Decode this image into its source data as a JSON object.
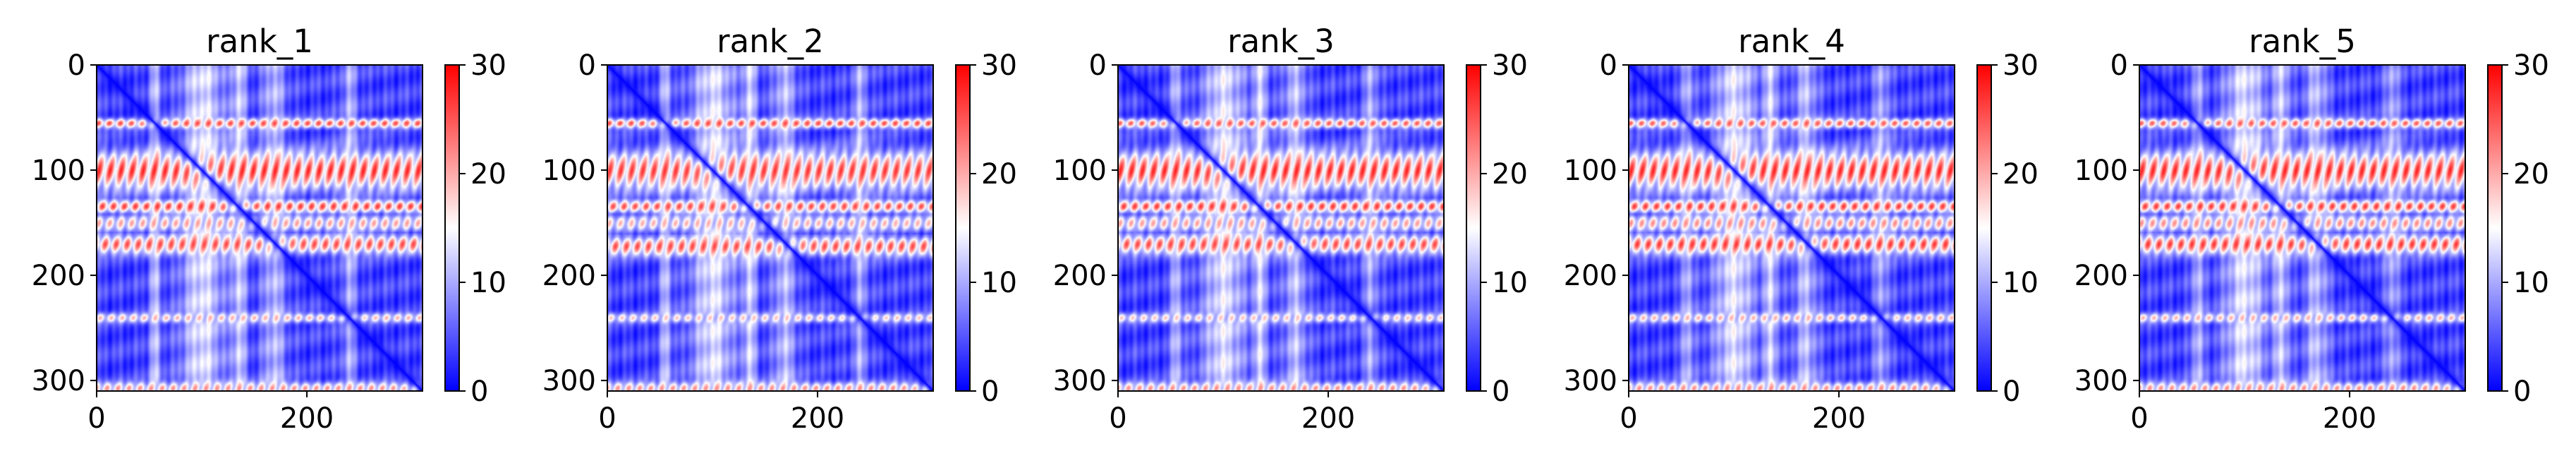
{
  "figure": {
    "panels": [
      {
        "title": "rank_1"
      },
      {
        "title": "rank_2"
      },
      {
        "title": "rank_3"
      },
      {
        "title": "rank_4"
      },
      {
        "title": "rank_5"
      }
    ]
  },
  "chart_data": {
    "type": "heatmap",
    "colormap": "bwr",
    "colormap_colors": [
      "#0000ff",
      "#ffffff",
      "#ff0000"
    ],
    "value_range": [
      0,
      30
    ],
    "matrix_size": 310,
    "xlim": [
      0,
      310
    ],
    "ylim": [
      310,
      0
    ],
    "x_tick_labels": [
      "0",
      "200"
    ],
    "x_tick_values": [
      0,
      200
    ],
    "y_tick_labels": [
      "0",
      "100",
      "200",
      "300"
    ],
    "y_tick_values": [
      0,
      100,
      200,
      300
    ],
    "colorbar_tick_labels": [
      "0",
      "10",
      "20",
      "30"
    ],
    "colorbar_tick_values": [
      0,
      10,
      20,
      30
    ],
    "grid": false,
    "panels": [
      {
        "title": "rank_1",
        "row_bands": [
          {
            "center": 55,
            "width": 3,
            "value": 26
          },
          {
            "center": 100,
            "width": 12,
            "value": 28
          },
          {
            "center": 134,
            "width": 4,
            "value": 27
          },
          {
            "center": 150,
            "width": 5,
            "value": 21
          },
          {
            "center": 170,
            "width": 6,
            "value": 26
          },
          {
            "center": 240,
            "width": 3,
            "value": 20
          },
          {
            "center": 307,
            "width": 4,
            "value": 22
          }
        ],
        "column_bands": [
          {
            "center": 55,
            "width": 4,
            "value": 11
          },
          {
            "center": 100,
            "width": 14,
            "value": 13
          },
          {
            "center": 135,
            "width": 5,
            "value": 12
          },
          {
            "center": 168,
            "width": 8,
            "value": 11
          },
          {
            "center": 240,
            "width": 5,
            "value": 10
          }
        ]
      },
      {
        "title": "rank_2",
        "row_bands": [
          {
            "center": 55,
            "width": 3,
            "value": 26
          },
          {
            "center": 100,
            "width": 12,
            "value": 27
          },
          {
            "center": 134,
            "width": 4,
            "value": 26
          },
          {
            "center": 150,
            "width": 5,
            "value": 20
          },
          {
            "center": 172,
            "width": 6,
            "value": 26
          },
          {
            "center": 240,
            "width": 3,
            "value": 19
          },
          {
            "center": 307,
            "width": 4,
            "value": 22
          }
        ],
        "column_bands": [
          {
            "center": 55,
            "width": 4,
            "value": 11
          },
          {
            "center": 100,
            "width": 14,
            "value": 13
          },
          {
            "center": 135,
            "width": 5,
            "value": 12
          },
          {
            "center": 168,
            "width": 8,
            "value": 11
          },
          {
            "center": 240,
            "width": 5,
            "value": 10
          }
        ]
      },
      {
        "title": "rank_3",
        "row_bands": [
          {
            "center": 55,
            "width": 3,
            "value": 25
          },
          {
            "center": 100,
            "width": 12,
            "value": 28
          },
          {
            "center": 134,
            "width": 4,
            "value": 27
          },
          {
            "center": 150,
            "width": 5,
            "value": 21
          },
          {
            "center": 170,
            "width": 6,
            "value": 26
          },
          {
            "center": 240,
            "width": 3,
            "value": 19
          },
          {
            "center": 307,
            "width": 4,
            "value": 22
          }
        ],
        "column_bands": [
          {
            "center": 55,
            "width": 4,
            "value": 11
          },
          {
            "center": 100,
            "width": 14,
            "value": 13
          },
          {
            "center": 135,
            "width": 5,
            "value": 12
          },
          {
            "center": 168,
            "width": 8,
            "value": 11
          },
          {
            "center": 240,
            "width": 5,
            "value": 10
          }
        ]
      },
      {
        "title": "rank_4",
        "row_bands": [
          {
            "center": 55,
            "width": 3,
            "value": 25
          },
          {
            "center": 100,
            "width": 12,
            "value": 28
          },
          {
            "center": 134,
            "width": 4,
            "value": 27
          },
          {
            "center": 150,
            "width": 5,
            "value": 22
          },
          {
            "center": 170,
            "width": 6,
            "value": 27
          },
          {
            "center": 240,
            "width": 3,
            "value": 20
          },
          {
            "center": 307,
            "width": 4,
            "value": 22
          }
        ],
        "column_bands": [
          {
            "center": 55,
            "width": 4,
            "value": 11
          },
          {
            "center": 100,
            "width": 14,
            "value": 13
          },
          {
            "center": 135,
            "width": 5,
            "value": 12
          },
          {
            "center": 168,
            "width": 8,
            "value": 11
          },
          {
            "center": 240,
            "width": 5,
            "value": 10
          }
        ]
      },
      {
        "title": "rank_5",
        "row_bands": [
          {
            "center": 55,
            "width": 3,
            "value": 25
          },
          {
            "center": 100,
            "width": 12,
            "value": 28
          },
          {
            "center": 134,
            "width": 4,
            "value": 27
          },
          {
            "center": 150,
            "width": 5,
            "value": 22
          },
          {
            "center": 170,
            "width": 6,
            "value": 27
          },
          {
            "center": 240,
            "width": 3,
            "value": 20
          },
          {
            "center": 307,
            "width": 4,
            "value": 22
          }
        ],
        "column_bands": [
          {
            "center": 55,
            "width": 4,
            "value": 11
          },
          {
            "center": 100,
            "width": 14,
            "value": 13
          },
          {
            "center": 135,
            "width": 5,
            "value": 12
          },
          {
            "center": 168,
            "width": 8,
            "value": 11
          },
          {
            "center": 240,
            "width": 5,
            "value": 10
          }
        ]
      }
    ]
  }
}
